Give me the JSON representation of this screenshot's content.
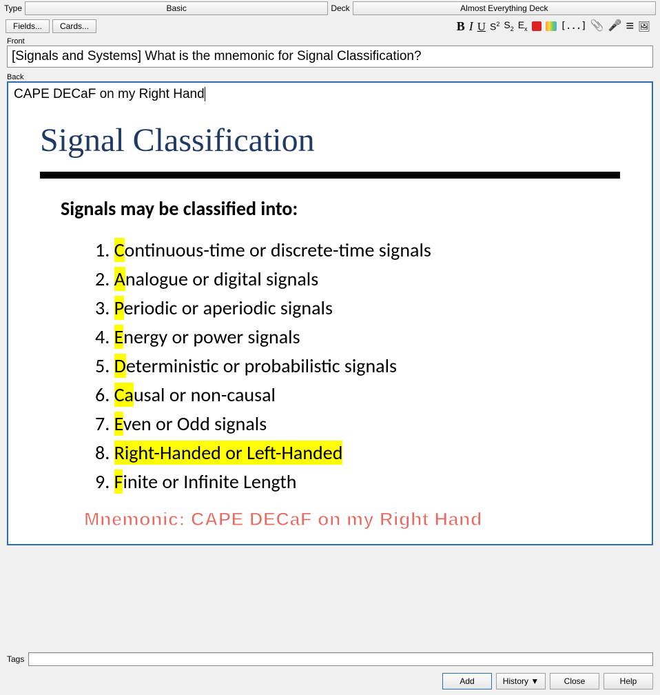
{
  "header": {
    "type_label": "Type",
    "deck_label": "Deck",
    "type_value": "Basic",
    "deck_value": "Almost Everything Deck",
    "fields_btn": "Fields...",
    "cards_btn": "Cards..."
  },
  "toolbar": {
    "bold": "B",
    "italic": "I",
    "underline": "U",
    "superscript_base": "S",
    "superscript_exp": "2",
    "subscript_base": "S",
    "subscript_exp": "2",
    "clear_base": "E",
    "clear_exp": "x",
    "fg_color": "#e02020",
    "cloze": "[...]",
    "attach": "📎",
    "mic": "🎤",
    "menu": "≡",
    "latex": "🖼"
  },
  "fields": {
    "front_label": "Front",
    "front_text": "[Signals and Systems] What is the mnemonic for Signal Classification?",
    "back_label": "Back",
    "back_text": "CAPE DECaF on my Right Hand"
  },
  "slide": {
    "title": "Signal Classification",
    "subtitle": "Signals may be classified into:",
    "highlight_color": "#ffff00",
    "title_color": "#1f3a63",
    "mnemonic_color": "#e8695f",
    "items": [
      {
        "pre": "",
        "hl": "C",
        "post": "ontinuous-time or discrete-time signals"
      },
      {
        "pre": "",
        "hl": "A",
        "post": "nalogue or digital signals"
      },
      {
        "pre": "",
        "hl": "P",
        "post": "eriodic or aperiodic signals"
      },
      {
        "pre": "",
        "hl": "E",
        "post": "nergy or power signals"
      },
      {
        "pre": "",
        "hl": "D",
        "post": "eterministic or probabilistic signals"
      },
      {
        "pre": "",
        "hl": "Ca",
        "post": "usal or non-causal"
      },
      {
        "pre": "",
        "hl": "E",
        "post": "ven or Odd signals"
      },
      {
        "pre": "",
        "hl": "Right-Handed or Left-Handed",
        "post": ""
      },
      {
        "pre": "",
        "hl": "F",
        "post": "inite or Infinite Length"
      }
    ],
    "mnemonic": "Mnemonic: CAPE DECaF on my Right Hand"
  },
  "footer": {
    "tags_label": "Tags",
    "add": "Add",
    "history": "History ▼",
    "close": "Close",
    "help": "Help"
  }
}
